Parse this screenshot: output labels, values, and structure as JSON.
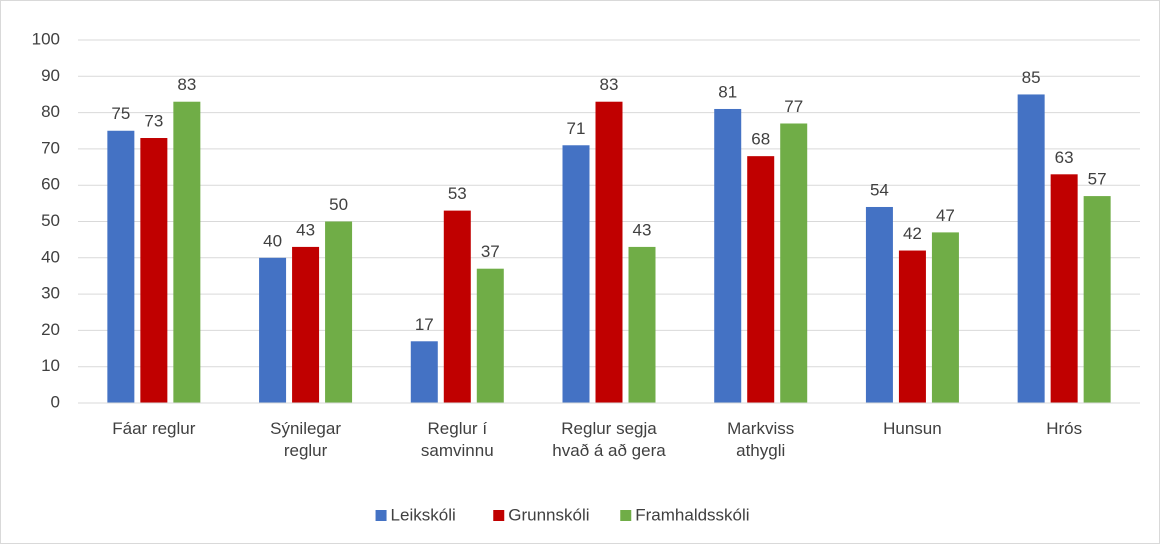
{
  "chart_data": {
    "type": "bar",
    "categories": [
      "Fáar reglur",
      "Sýnilegar\nreglur",
      "Reglur í\nsamvinnu",
      "Reglur segja\nhvað á að gera",
      "Markviss\nathygli",
      "Hunsun",
      "Hrós"
    ],
    "series": [
      {
        "name": "Leikskóli",
        "color": "#4472c4",
        "values": [
          75,
          40,
          17,
          71,
          81,
          54,
          85
        ]
      },
      {
        "name": "Grunnskóli",
        "color": "#c00000",
        "values": [
          73,
          43,
          53,
          83,
          68,
          42,
          63
        ]
      },
      {
        "name": "Framhaldsskóli",
        "color": "#70ad47",
        "values": [
          83,
          50,
          37,
          43,
          77,
          47,
          57
        ]
      }
    ],
    "ylim": [
      0,
      100
    ],
    "yticks": [
      0,
      10,
      20,
      30,
      40,
      50,
      60,
      70,
      80,
      90,
      100
    ],
    "grid": true,
    "legend": "bottom"
  }
}
